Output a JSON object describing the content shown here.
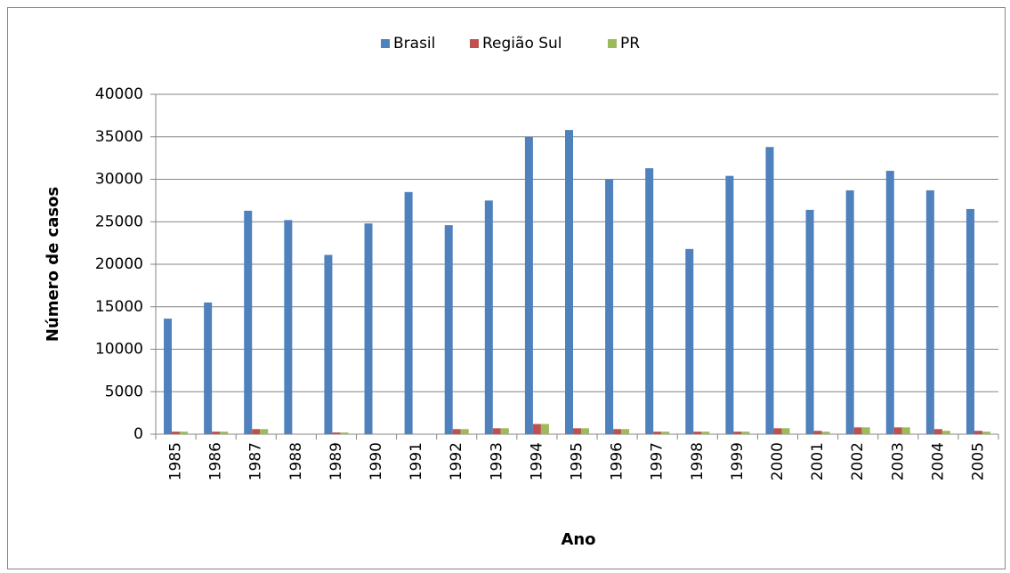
{
  "chart_data": {
    "type": "bar",
    "x_label": "Ano",
    "y_label": "Número de casos",
    "categories": [
      "1985",
      "1986",
      "1987",
      "1988",
      "1989",
      "1990",
      "1991",
      "1992",
      "1993",
      "1994",
      "1995",
      "1996",
      "1997",
      "1998",
      "1999",
      "2000",
      "2001",
      "2002",
      "2003",
      "2004",
      "2005"
    ],
    "series": [
      {
        "name": "Brasil",
        "color": "#4f81bd",
        "values": [
          13600,
          15500,
          26300,
          25200,
          21100,
          24800,
          28500,
          24600,
          27500,
          35000,
          35800,
          30000,
          31300,
          21800,
          30400,
          33800,
          26400,
          28700,
          31000,
          28700,
          26500
        ]
      },
      {
        "name": "Região Sul",
        "color": "#c0504d",
        "values": [
          300,
          300,
          600,
          0,
          200,
          0,
          0,
          600,
          700,
          1200,
          700,
          600,
          300,
          300,
          300,
          700,
          400,
          800,
          800,
          600,
          400
        ]
      },
      {
        "name": "PR",
        "color": "#9bbb59",
        "values": [
          300,
          300,
          600,
          0,
          200,
          0,
          0,
          600,
          700,
          1200,
          700,
          600,
          300,
          300,
          300,
          700,
          300,
          800,
          800,
          400,
          300
        ]
      }
    ],
    "ylim": [
      0,
      40000
    ],
    "yticks": [
      0,
      5000,
      10000,
      15000,
      20000,
      25000,
      30000,
      35000,
      40000
    ],
    "grid": true,
    "legend": "top"
  }
}
